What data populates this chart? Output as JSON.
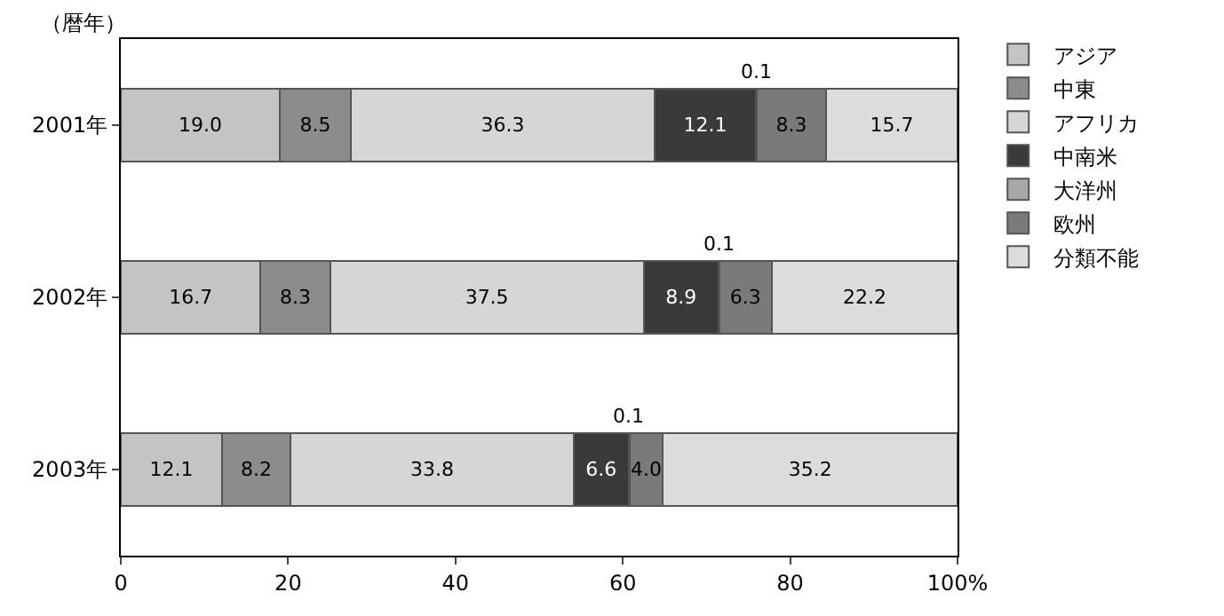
{
  "chart_data": {
    "type": "bar",
    "orientation": "horizontal",
    "stacked": true,
    "ylabel": "（暦年）",
    "categories": [
      "2001年",
      "2002年",
      "2003年"
    ],
    "series": [
      {
        "name": "アジア",
        "color": "#c4c4c4",
        "values": [
          19.0,
          16.7,
          12.1
        ],
        "value_labels": [
          "19.0",
          "16.7",
          "12.1"
        ]
      },
      {
        "name": "中東",
        "color": "#8c8c8c",
        "values": [
          8.5,
          8.3,
          8.2
        ],
        "value_labels": [
          "8.5",
          "8.3",
          "8.2"
        ]
      },
      {
        "name": "アフリカ",
        "color": "#d6d6d6",
        "values": [
          36.3,
          37.5,
          33.8
        ],
        "value_labels": [
          "36.3",
          "37.5",
          "33.8"
        ]
      },
      {
        "name": "中南米",
        "color": "#3a3a3a",
        "values": [
          12.1,
          8.9,
          6.6
        ],
        "value_labels": [
          "12.1",
          "8.9",
          "6.6"
        ]
      },
      {
        "name": "大洋州",
        "color": "#a8a8a8",
        "values": [
          0.1,
          0.1,
          0.1
        ],
        "value_labels": [
          "0.1",
          "0.1",
          "0.1"
        ]
      },
      {
        "name": "欧州",
        "color": "#7a7a7a",
        "values": [
          8.3,
          6.3,
          4.0
        ],
        "value_labels": [
          "8.3",
          "6.3",
          "4.0"
        ]
      },
      {
        "name": "分類不能",
        "color": "#dcdcdc",
        "values": [
          15.7,
          22.2,
          35.2
        ],
        "value_labels": [
          "15.7",
          "22.2",
          "35.2"
        ]
      }
    ],
    "xlim": [
      0,
      100
    ],
    "xticks": [
      0,
      20,
      40,
      60,
      80,
      {
        "value": 100,
        "label": "100%"
      }
    ],
    "legend": "top right"
  }
}
